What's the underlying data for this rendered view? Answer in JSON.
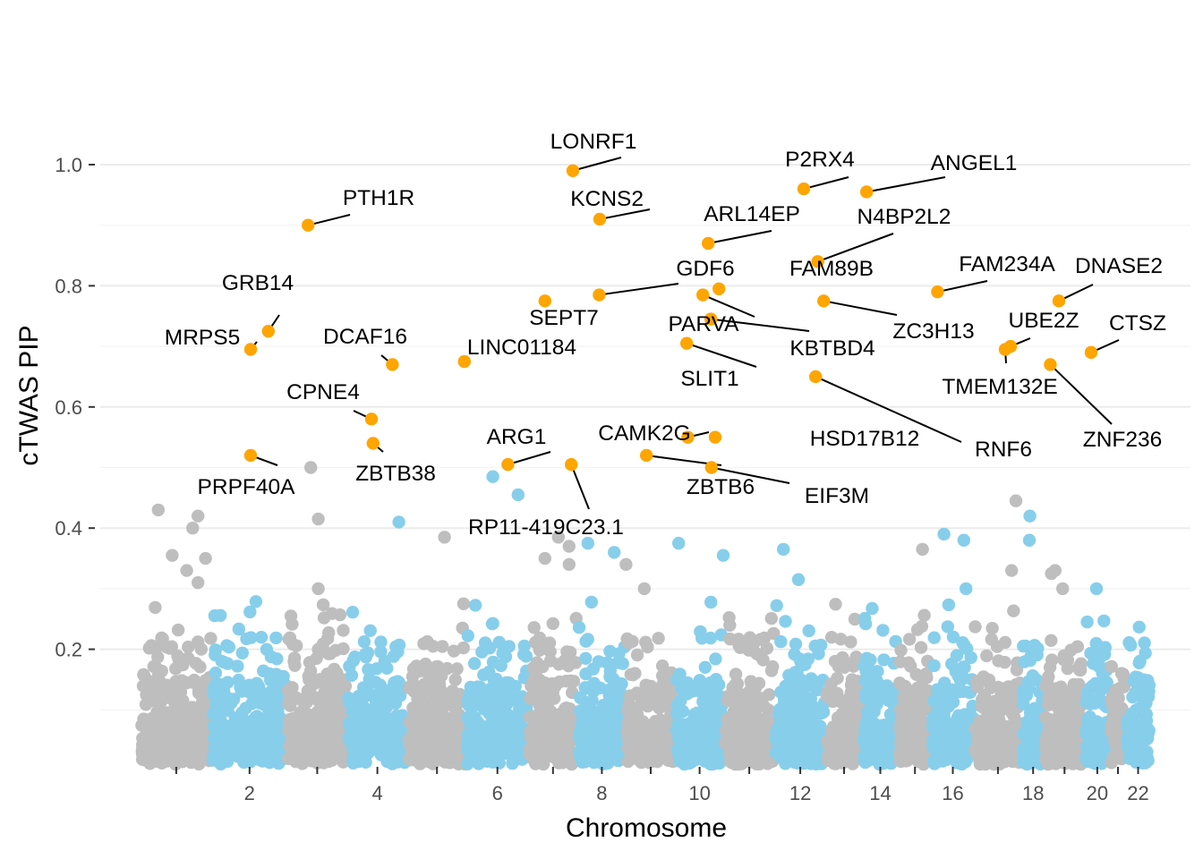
{
  "chart_data": {
    "type": "scatter",
    "subtype": "manhattan",
    "title": "",
    "xlabel": "Chromosome",
    "ylabel": "cTWAS PIP",
    "ylim": [
      0,
      1.02
    ],
    "yticks": [
      0.2,
      0.4,
      0.6,
      0.8,
      1.0
    ],
    "ytick_labels": [
      "0.2",
      "0.4",
      "0.6",
      "0.8",
      "1.0"
    ],
    "x_axis_unit": "chromosome position (chromosome index + fraction)",
    "chromosome_colors": [
      "#bebebe",
      "#87ceeb"
    ],
    "highlight_color": "#ffa500",
    "chromosomes": [
      {
        "chr": 1,
        "label": "",
        "start": 0.0,
        "end": 1.33
      },
      {
        "chr": 2,
        "label": "2",
        "start": 1.33,
        "end": 2.73
      },
      {
        "chr": 3,
        "label": "",
        "start": 2.73,
        "end": 3.85
      },
      {
        "chr": 4,
        "label": "4",
        "start": 3.85,
        "end": 4.97
      },
      {
        "chr": 5,
        "label": "",
        "start": 4.97,
        "end": 6.07
      },
      {
        "chr": 6,
        "label": "6",
        "start": 6.07,
        "end": 7.22
      },
      {
        "chr": 7,
        "label": "",
        "start": 7.22,
        "end": 8.14
      },
      {
        "chr": 8,
        "label": "8",
        "start": 8.14,
        "end": 9.04
      },
      {
        "chr": 9,
        "label": "",
        "start": 9.04,
        "end": 9.96
      },
      {
        "chr": 10,
        "label": "10",
        "start": 9.96,
        "end": 10.86
      },
      {
        "chr": 11,
        "label": "",
        "start": 10.86,
        "end": 11.81
      },
      {
        "chr": 12,
        "label": "12",
        "start": 11.81,
        "end": 12.76
      },
      {
        "chr": 13,
        "label": "",
        "start": 12.76,
        "end": 13.44
      },
      {
        "chr": 14,
        "label": "14",
        "start": 13.44,
        "end": 14.11
      },
      {
        "chr": 15,
        "label": "",
        "start": 14.11,
        "end": 14.73
      },
      {
        "chr": 16,
        "label": "16",
        "start": 14.73,
        "end": 15.52
      },
      {
        "chr": 17,
        "label": "",
        "start": 15.52,
        "end": 16.41
      },
      {
        "chr": 18,
        "label": "18",
        "start": 16.41,
        "end": 16.83
      },
      {
        "chr": 19,
        "label": "",
        "start": 16.83,
        "end": 17.58
      },
      {
        "chr": 20,
        "label": "20",
        "start": 17.58,
        "end": 18.05
      },
      {
        "chr": 21,
        "label": "",
        "start": 18.05,
        "end": 18.35
      },
      {
        "chr": 22,
        "label": "22",
        "start": 18.35,
        "end": 18.8
      }
    ],
    "labeled_genes": [
      {
        "gene": "LONRF1",
        "x": 8.05,
        "pip": 0.99
      },
      {
        "gene": "KCNS2",
        "x": 8.55,
        "pip": 0.91
      },
      {
        "gene": "P2RX4",
        "x": 12.35,
        "pip": 0.96
      },
      {
        "gene": "ANGEL1",
        "x": 13.52,
        "pip": 0.955
      },
      {
        "gene": "PTH1R",
        "x": 3.12,
        "pip": 0.9
      },
      {
        "gene": "ARL14EP",
        "x": 10.57,
        "pip": 0.87
      },
      {
        "gene": "N4BP2L2",
        "x": 12.61,
        "pip": 0.84
      },
      {
        "gene": "GDF6",
        "x": 8.54,
        "pip": 0.785
      },
      {
        "gene": "FAM89B",
        "x": 10.77,
        "pip": 0.795
      },
      {
        "gene": "FAM234A",
        "x": 14.84,
        "pip": 0.79
      },
      {
        "gene": "DNASE2",
        "x": 17.1,
        "pip": 0.775
      },
      {
        "gene": "GRB14",
        "x": 2.38,
        "pip": 0.725
      },
      {
        "gene": "SEPT7",
        "x": 7.53,
        "pip": 0.775
      },
      {
        "gene": "PARVA",
        "x": 10.47,
        "pip": 0.785
      },
      {
        "gene": "ZC3H13",
        "x": 12.72,
        "pip": 0.775
      },
      {
        "gene": "KBTBD4",
        "x": 10.62,
        "pip": 0.745
      },
      {
        "gene": "UBE2Z",
        "x": 16.2,
        "pip": 0.7
      },
      {
        "gene": "CTSZ",
        "x": 17.7,
        "pip": 0.69
      },
      {
        "gene": "MRPS5",
        "x": 2.05,
        "pip": 0.695
      },
      {
        "gene": "DCAF16",
        "x": 4.69,
        "pip": 0.67
      },
      {
        "gene": "LINC01184",
        "x": 6.03,
        "pip": 0.675
      },
      {
        "gene": "SLIT1",
        "x": 10.17,
        "pip": 0.705
      },
      {
        "gene": "TMEM132E",
        "x": 16.1,
        "pip": 0.695
      },
      {
        "gene": "RNF6",
        "x": 12.57,
        "pip": 0.65
      },
      {
        "gene": "ZNF236",
        "x": 16.94,
        "pip": 0.67
      },
      {
        "gene": "CPNE4",
        "x": 4.3,
        "pip": 0.58
      },
      {
        "gene": "ZBTB38",
        "x": 4.33,
        "pip": 0.54
      },
      {
        "gene": "PRPF40A",
        "x": 2.05,
        "pip": 0.52
      },
      {
        "gene": "ARG1",
        "x": 6.84,
        "pip": 0.505
      },
      {
        "gene": "CAMK2G",
        "x": 10.19,
        "pip": 0.55
      },
      {
        "gene": "HSD17B12",
        "x": 10.7,
        "pip": 0.55
      },
      {
        "gene": "RP11-419C23.1",
        "x": 8.02,
        "pip": 0.505
      },
      {
        "gene": "ZBTB6",
        "x": 9.42,
        "pip": 0.52
      },
      {
        "gene": "EIF3M",
        "x": 10.63,
        "pip": 0.5
      }
    ],
    "notable_background_points": [
      {
        "x": 0.33,
        "pip": 0.43
      },
      {
        "x": 1.07,
        "pip": 0.42
      },
      {
        "x": 0.97,
        "pip": 0.4
      },
      {
        "x": 0.59,
        "pip": 0.355
      },
      {
        "x": 0.86,
        "pip": 0.33
      },
      {
        "x": 1.07,
        "pip": 0.31
      },
      {
        "x": 1.21,
        "pip": 0.35
      },
      {
        "x": 3.17,
        "pip": 0.5
      },
      {
        "x": 3.31,
        "pip": 0.415
      },
      {
        "x": 3.31,
        "pip": 0.3
      },
      {
        "x": 5.66,
        "pip": 0.385
      },
      {
        "x": 7.78,
        "pip": 0.385
      },
      {
        "x": 7.53,
        "pip": 0.35
      },
      {
        "x": 7.98,
        "pip": 0.34
      },
      {
        "x": 7.98,
        "pip": 0.37
      },
      {
        "x": 9.04,
        "pip": 0.34
      },
      {
        "x": 9.38,
        "pip": 0.3
      },
      {
        "x": 10.85,
        "pip": 0.355
      },
      {
        "x": 14.56,
        "pip": 0.365
      },
      {
        "x": 14.96,
        "pip": 0.39
      },
      {
        "x": 16.3,
        "pip": 0.445
      },
      {
        "x": 16.55,
        "pip": 0.38
      },
      {
        "x": 16.22,
        "pip": 0.33
      },
      {
        "x": 16.96,
        "pip": 0.325
      },
      {
        "x": 17.03,
        "pip": 0.33
      },
      {
        "x": 17.17,
        "pip": 0.3
      },
      {
        "x": 6.56,
        "pip": 0.485
      },
      {
        "x": 7.03,
        "pip": 0.455
      },
      {
        "x": 4.81,
        "pip": 0.41
      },
      {
        "x": 8.33,
        "pip": 0.375
      },
      {
        "x": 8.82,
        "pip": 0.36
      },
      {
        "x": 10.02,
        "pip": 0.375
      },
      {
        "x": 11.97,
        "pip": 0.365
      },
      {
        "x": 16.56,
        "pip": 0.42
      },
      {
        "x": 15.33,
        "pip": 0.38
      },
      {
        "x": 15.37,
        "pip": 0.3
      },
      {
        "x": 17.8,
        "pip": 0.3
      },
      {
        "x": 12.25,
        "pip": 0.315
      }
    ]
  }
}
